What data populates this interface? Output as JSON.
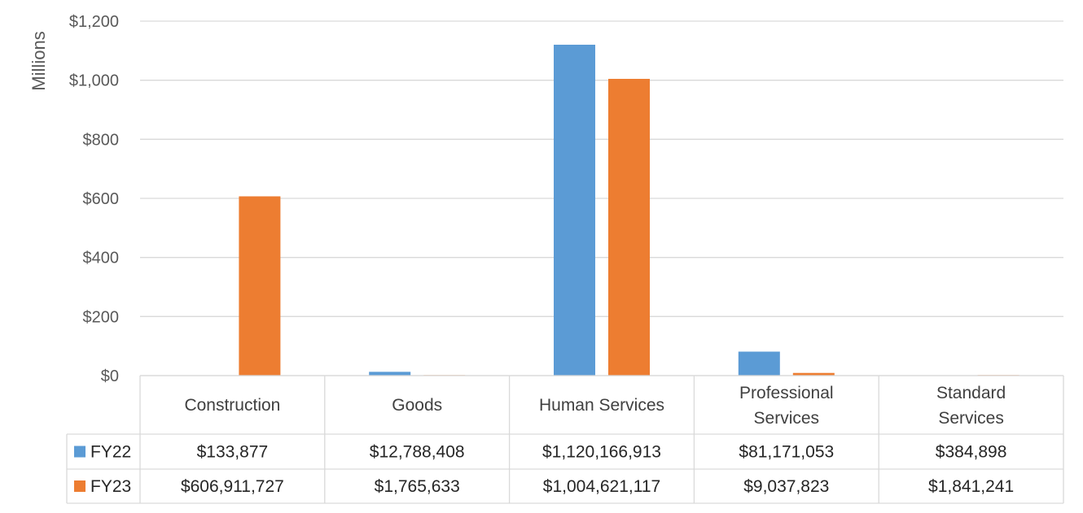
{
  "chart_data": {
    "type": "bar",
    "ylabel": "Millions",
    "ylim": [
      0,
      1200
    ],
    "yticks": [
      0,
      200,
      400,
      600,
      800,
      1000,
      1200
    ],
    "ytick_labels": [
      "$0",
      "$200",
      "$400",
      "$600",
      "$800",
      "$1,000",
      "$1,200"
    ],
    "grid": true,
    "categories": [
      "Construction",
      "Goods",
      "Human Services",
      "Professional Services",
      "Standard Services"
    ],
    "series": [
      {
        "name": "FY22",
        "color": "#5B9BD5",
        "values": [
          0.133877,
          12.788408,
          1120.166913,
          81.171053,
          0.384898
        ],
        "labels": [
          "$133,877",
          "$12,788,408",
          "$1,120,166,913",
          "$81,171,053",
          "$384,898"
        ]
      },
      {
        "name": "FY23",
        "color": "#ED7D31",
        "values": [
          606.911727,
          1.765633,
          1004.621117,
          9.037823,
          1.841241
        ],
        "labels": [
          "$606,911,727",
          "$1,765,633",
          "$1,004,621,117",
          "$9,037,823",
          "$1,841,241"
        ]
      }
    ]
  }
}
